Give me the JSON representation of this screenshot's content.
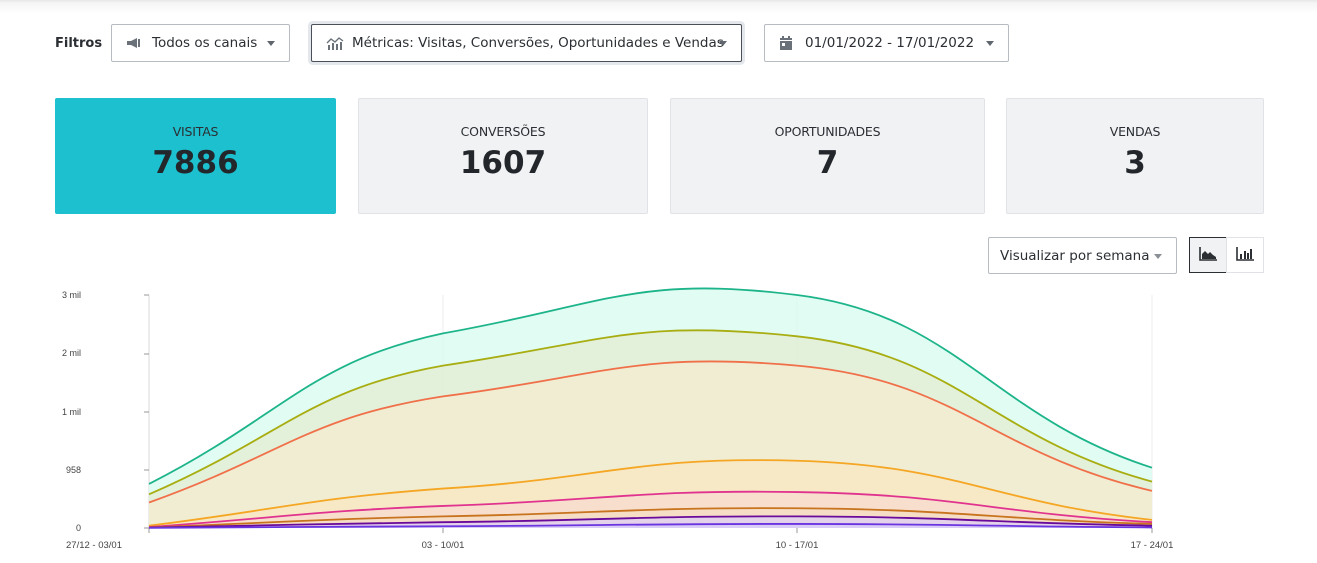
{
  "filters": {
    "label": "Filtros",
    "channels": {
      "value": "Todos os canais",
      "icon": "megaphone-icon"
    },
    "metrics": {
      "value": "Métricas: Visitas, Conversões, Oportunidades e Vendas",
      "icon": "chart-icon"
    },
    "date_range": {
      "value": "01/01/2022 - 17/01/2022",
      "icon": "calendar-icon"
    }
  },
  "cards": [
    {
      "label": "VISITAS",
      "value": "7886",
      "active": true
    },
    {
      "label": "CONVERSÕES",
      "value": "1607",
      "active": false
    },
    {
      "label": "OPORTUNIDADES",
      "value": "7",
      "active": false
    },
    {
      "label": "VENDAS",
      "value": "3",
      "active": false
    }
  ],
  "view": {
    "period_select": "Visualizar por semana",
    "area_chart_button": "area-chart-icon",
    "bar_chart_button": "bar-chart-icon"
  },
  "colors": {
    "accent": "#1cc0cf",
    "card_bg": "#f1f2f4"
  },
  "chart_data": {
    "type": "area",
    "title": "",
    "xlabel": "",
    "ylabel": "",
    "categories": [
      "27/12 - 03/01",
      "03 - 10/01",
      "10 - 17/01",
      "17 - 24/01"
    ],
    "y_tick_labels": [
      "0",
      "958",
      "1 mil",
      "2 mil",
      "3 mil"
    ],
    "ylim": [
      0,
      3000
    ],
    "grid": "vertical lines at categories",
    "legend": "none",
    "series": [
      {
        "name": "series-1",
        "color": "#1db48a",
        "fill": "#dcfbf1",
        "values": [
          380,
          2350,
          3000,
          520
        ]
      },
      {
        "name": "series-2",
        "color": "#a8ad11",
        "fill": "#e3efd6",
        "values": [
          290,
          1800,
          2300,
          400
        ]
      },
      {
        "name": "series-3",
        "color": "#f0704a",
        "fill": "#f3ecd0",
        "values": [
          220,
          1270,
          1800,
          320
        ]
      },
      {
        "name": "series-4",
        "color": "#f5a623",
        "fill": "#f8e6c4",
        "values": [
          20,
          340,
          580,
          70
        ]
      },
      {
        "name": "series-5",
        "color": "#e0338f",
        "fill": "#f8dccc",
        "values": [
          8,
          190,
          310,
          50
        ]
      },
      {
        "name": "series-6",
        "color": "#c8731e",
        "fill": "#f5ddc4",
        "values": [
          5,
          100,
          170,
          35
        ]
      },
      {
        "name": "series-7",
        "color": "#6a0a9a",
        "fill": "#e0d0f0",
        "values": [
          3,
          50,
          100,
          20
        ]
      },
      {
        "name": "series-8",
        "color": "#6a35e0",
        "fill": "#d8cdf8",
        "values": [
          1,
          15,
          35,
          5
        ]
      }
    ]
  }
}
